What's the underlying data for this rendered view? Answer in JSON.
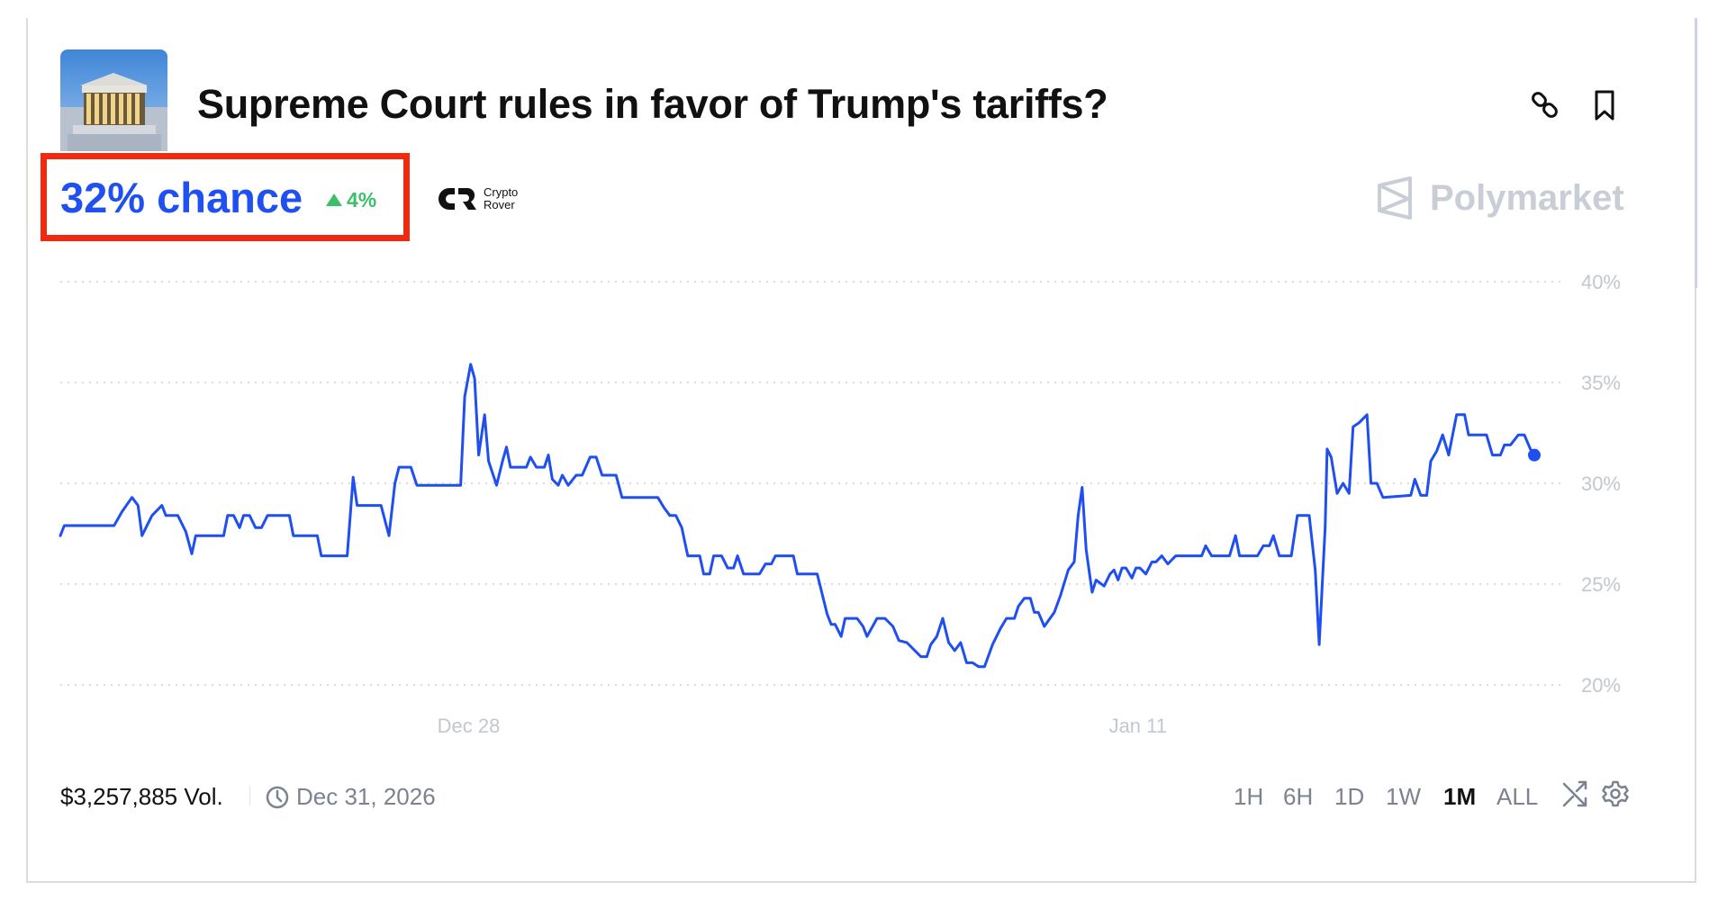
{
  "market": {
    "title": "Supreme Court rules in favor of Trump's tariffs?",
    "chance": "32% chance",
    "change": "4%",
    "change_direction": "up",
    "volume": "$3,257,885 Vol.",
    "end_date": "Dec 31, 2026"
  },
  "branding": {
    "crypto_rover_line1": "Crypto",
    "crypto_rover_line2": "Rover",
    "watermark": "Polymarket"
  },
  "header_icons": [
    "link-icon",
    "bookmark-icon"
  ],
  "time_ranges": [
    {
      "label": "1H",
      "active": false
    },
    {
      "label": "6H",
      "active": false
    },
    {
      "label": "1D",
      "active": false
    },
    {
      "label": "1W",
      "active": false
    },
    {
      "label": "1M",
      "active": true
    },
    {
      "label": "ALL",
      "active": false
    }
  ],
  "footer_icons": [
    "shuffle-icon",
    "gear-icon"
  ],
  "colors": {
    "line": "#1f4ff0",
    "chance": "#2050f0",
    "up": "#3dbf6a",
    "highlight_box": "#f02a10"
  },
  "chart_data": {
    "type": "line",
    "title": "",
    "xlabel": "",
    "ylabel": "",
    "ylim": [
      20,
      40
    ],
    "y_ticks": [
      "20%",
      "25%",
      "30%",
      "35%",
      "40%"
    ],
    "y_tick_values": [
      20,
      25,
      30,
      35,
      40
    ],
    "x_ticks": [
      "Dec 28",
      "Jan 11"
    ],
    "x_tick_values": [
      "2025-12-28T00:00",
      "2026-01-11T00:00"
    ],
    "grid": "horizontal dotted",
    "y_axis_side": "right",
    "series": [
      {
        "points": [
          [
            "2025-12-19T11:00",
            27.4
          ],
          [
            "2025-12-19T13:00",
            27.9
          ],
          [
            "2025-12-20T14:00",
            27.9
          ],
          [
            "2025-12-20T18:00",
            28.6
          ],
          [
            "2025-12-20T23:00",
            29.3
          ],
          [
            "2025-12-21T02:00",
            28.9
          ],
          [
            "2025-12-21T04:00",
            27.4
          ],
          [
            "2025-12-21T09:00",
            28.4
          ],
          [
            "2025-12-21T14:00",
            28.9
          ],
          [
            "2025-12-21T16:00",
            28.4
          ],
          [
            "2025-12-21T22:00",
            28.4
          ],
          [
            "2025-12-22T02:00",
            27.6
          ],
          [
            "2025-12-22T05:00",
            26.5
          ],
          [
            "2025-12-22T07:00",
            27.4
          ],
          [
            "2025-12-22T21:00",
            27.4
          ],
          [
            "2025-12-22T23:00",
            28.4
          ],
          [
            "2025-12-23T02:00",
            28.4
          ],
          [
            "2025-12-23T05:00",
            27.8
          ],
          [
            "2025-12-23T07:00",
            28.4
          ],
          [
            "2025-12-23T10:00",
            28.4
          ],
          [
            "2025-12-23T13:00",
            27.8
          ],
          [
            "2025-12-23T16:00",
            27.8
          ],
          [
            "2025-12-23T19:00",
            28.4
          ],
          [
            "2025-12-24T06:00",
            28.4
          ],
          [
            "2025-12-24T08:00",
            27.4
          ],
          [
            "2025-12-24T20:00",
            27.4
          ],
          [
            "2025-12-24T22:00",
            26.4
          ],
          [
            "2025-12-25T11:00",
            26.4
          ],
          [
            "2025-12-25T14:00",
            30.3
          ],
          [
            "2025-12-25T16:00",
            28.9
          ],
          [
            "2025-12-26T04:00",
            28.9
          ],
          [
            "2025-12-26T08:00",
            27.4
          ],
          [
            "2025-12-26T11:00",
            30.0
          ],
          [
            "2025-12-26T13:00",
            30.8
          ],
          [
            "2025-12-26T19:00",
            30.8
          ],
          [
            "2025-12-26T22:00",
            29.9
          ],
          [
            "2025-12-27T20:00",
            29.9
          ],
          [
            "2025-12-27T22:00",
            34.3
          ],
          [
            "2025-12-28T01:00",
            35.9
          ],
          [
            "2025-12-28T03:00",
            35.2
          ],
          [
            "2025-12-28T05:00",
            31.4
          ],
          [
            "2025-12-28T08:00",
            33.4
          ],
          [
            "2025-12-28T10:00",
            31.1
          ],
          [
            "2025-12-28T14:00",
            29.9
          ],
          [
            "2025-12-28T17:00",
            31.1
          ],
          [
            "2025-12-28T19:00",
            31.8
          ],
          [
            "2025-12-28T21:00",
            30.8
          ],
          [
            "2025-12-29T05:00",
            30.8
          ],
          [
            "2025-12-29T07:00",
            31.3
          ],
          [
            "2025-12-29T10:00",
            30.8
          ],
          [
            "2025-12-29T14:00",
            30.8
          ],
          [
            "2025-12-29T16:00",
            31.4
          ],
          [
            "2025-12-29T18:00",
            30.2
          ],
          [
            "2025-12-29T21:00",
            29.9
          ],
          [
            "2025-12-29T23:00",
            30.4
          ],
          [
            "2025-12-30T02:00",
            29.9
          ],
          [
            "2025-12-30T06:00",
            30.4
          ],
          [
            "2025-12-30T09:00",
            30.4
          ],
          [
            "2025-12-30T13:00",
            31.3
          ],
          [
            "2025-12-30T16:00",
            31.3
          ],
          [
            "2025-12-30T19:00",
            30.4
          ],
          [
            "2025-12-31T02:00",
            30.4
          ],
          [
            "2025-12-31T05:00",
            29.3
          ],
          [
            "2025-12-31T23:00",
            29.3
          ],
          [
            "2026-01-01T02:00",
            28.8
          ],
          [
            "2026-01-01T05:00",
            28.4
          ],
          [
            "2026-01-01T08:00",
            28.4
          ],
          [
            "2026-01-01T11:00",
            27.8
          ],
          [
            "2026-01-01T14:00",
            26.4
          ],
          [
            "2026-01-01T20:00",
            26.4
          ],
          [
            "2026-01-01T22:00",
            25.5
          ],
          [
            "2026-01-02T01:00",
            25.5
          ],
          [
            "2026-01-02T03:00",
            26.4
          ],
          [
            "2026-01-02T07:00",
            26.4
          ],
          [
            "2026-01-02T10:00",
            25.8
          ],
          [
            "2026-01-02T13:00",
            25.8
          ],
          [
            "2026-01-02T15:00",
            26.4
          ],
          [
            "2026-01-02T18:00",
            25.5
          ],
          [
            "2026-01-03T02:00",
            25.5
          ],
          [
            "2026-01-03T05:00",
            26.0
          ],
          [
            "2026-01-03T08:00",
            26.0
          ],
          [
            "2026-01-03T10:00",
            26.4
          ],
          [
            "2026-01-03T19:00",
            26.4
          ],
          [
            "2026-01-03T21:00",
            25.5
          ],
          [
            "2026-01-04T07:00",
            25.5
          ],
          [
            "2026-01-04T12:00",
            23.5
          ],
          [
            "2026-01-04T14:00",
            23.0
          ],
          [
            "2026-01-04T16:00",
            23.0
          ],
          [
            "2026-01-04T19:00",
            22.4
          ],
          [
            "2026-01-04T21:00",
            23.3
          ],
          [
            "2026-01-05T03:00",
            23.3
          ],
          [
            "2026-01-05T06:00",
            22.9
          ],
          [
            "2026-01-05T08:00",
            22.4
          ],
          [
            "2026-01-05T13:00",
            23.3
          ],
          [
            "2026-01-05T17:00",
            23.3
          ],
          [
            "2026-01-05T21:00",
            22.9
          ],
          [
            "2026-01-06T00:00",
            22.2
          ],
          [
            "2026-01-06T04:00",
            22.1
          ],
          [
            "2026-01-06T11:00",
            21.4
          ],
          [
            "2026-01-06T14:00",
            21.4
          ],
          [
            "2026-01-06T16:00",
            22.0
          ],
          [
            "2026-01-06T19:00",
            22.4
          ],
          [
            "2026-01-06T22:00",
            23.3
          ],
          [
            "2026-01-07T01:00",
            22.1
          ],
          [
            "2026-01-07T04:00",
            21.7
          ],
          [
            "2026-01-07T07:00",
            22.1
          ],
          [
            "2026-01-07T10:00",
            21.1
          ],
          [
            "2026-01-07T13:00",
            21.1
          ],
          [
            "2026-01-07T16:00",
            20.9
          ],
          [
            "2026-01-07T19:00",
            20.9
          ],
          [
            "2026-01-07T23:00",
            22.0
          ],
          [
            "2026-01-08T03:00",
            22.8
          ],
          [
            "2026-01-08T06:00",
            23.3
          ],
          [
            "2026-01-08T10:00",
            23.3
          ],
          [
            "2026-01-08T12:00",
            23.9
          ],
          [
            "2026-01-08T15:00",
            24.3
          ],
          [
            "2026-01-08T18:00",
            24.3
          ],
          [
            "2026-01-08T20:00",
            23.6
          ],
          [
            "2026-01-08T22:00",
            23.6
          ],
          [
            "2026-01-09T01:00",
            22.9
          ],
          [
            "2026-01-09T06:00",
            23.6
          ],
          [
            "2026-01-09T09:00",
            24.4
          ],
          [
            "2026-01-09T13:00",
            25.7
          ],
          [
            "2026-01-09T16:00",
            26.1
          ],
          [
            "2026-01-09T18:00",
            28.4
          ],
          [
            "2026-01-09T20:00",
            29.8
          ],
          [
            "2026-01-09T22:00",
            26.7
          ],
          [
            "2026-01-10T01:00",
            24.6
          ],
          [
            "2026-01-10T03:00",
            25.2
          ],
          [
            "2026-01-10T07:00",
            24.9
          ],
          [
            "2026-01-10T10:00",
            25.5
          ],
          [
            "2026-01-10T12:00",
            25.7
          ],
          [
            "2026-01-10T14:00",
            25.2
          ],
          [
            "2026-01-10T16:00",
            25.8
          ],
          [
            "2026-01-10T18:00",
            25.8
          ],
          [
            "2026-01-10T21:00",
            25.3
          ],
          [
            "2026-01-10T23:00",
            25.8
          ],
          [
            "2026-01-11T01:00",
            25.8
          ],
          [
            "2026-01-11T04:00",
            25.5
          ],
          [
            "2026-01-11T07:00",
            26.1
          ],
          [
            "2026-01-11T09:00",
            26.1
          ],
          [
            "2026-01-11T12:00",
            26.4
          ],
          [
            "2026-01-11T15:00",
            26.0
          ],
          [
            "2026-01-11T19:00",
            26.4
          ],
          [
            "2026-01-12T08:00",
            26.4
          ],
          [
            "2026-01-12T10:00",
            26.9
          ],
          [
            "2026-01-12T13:00",
            26.4
          ],
          [
            "2026-01-12T22:00",
            26.4
          ],
          [
            "2026-01-13T01:00",
            27.4
          ],
          [
            "2026-01-13T03:00",
            26.4
          ],
          [
            "2026-01-13T12:00",
            26.4
          ],
          [
            "2026-01-13T15:00",
            26.9
          ],
          [
            "2026-01-13T18:00",
            26.9
          ],
          [
            "2026-01-13T20:00",
            27.4
          ],
          [
            "2026-01-13T23:00",
            26.4
          ],
          [
            "2026-01-14T05:00",
            26.4
          ],
          [
            "2026-01-14T08:00",
            28.4
          ],
          [
            "2026-01-14T14:00",
            28.4
          ],
          [
            "2026-01-14T17:00",
            25.7
          ],
          [
            "2026-01-14T19:00",
            22.0
          ],
          [
            "2026-01-14T22:00",
            27.8
          ],
          [
            "2026-01-14T23:00",
            31.7
          ],
          [
            "2026-01-15T01:00",
            31.3
          ],
          [
            "2026-01-15T04:00",
            29.5
          ],
          [
            "2026-01-15T07:00",
            30.0
          ],
          [
            "2026-01-15T10:00",
            29.5
          ],
          [
            "2026-01-15T12:00",
            32.8
          ],
          [
            "2026-01-15T15:00",
            33.0
          ],
          [
            "2026-01-15T19:00",
            33.4
          ],
          [
            "2026-01-15T21:00",
            30.0
          ],
          [
            "2026-01-16T00:00",
            30.0
          ],
          [
            "2026-01-16T03:00",
            29.3
          ],
          [
            "2026-01-16T17:00",
            29.4
          ],
          [
            "2026-01-16T19:00",
            30.2
          ],
          [
            "2026-01-16T22:00",
            29.4
          ],
          [
            "2026-01-17T01:00",
            29.4
          ],
          [
            "2026-01-17T03:00",
            31.1
          ],
          [
            "2026-01-17T06:00",
            31.6
          ],
          [
            "2026-01-17T09:00",
            32.4
          ],
          [
            "2026-01-17T12:00",
            31.4
          ],
          [
            "2026-01-17T16:00",
            33.4
          ],
          [
            "2026-01-17T20:00",
            33.4
          ],
          [
            "2026-01-17T22:00",
            32.4
          ],
          [
            "2026-01-18T07:00",
            32.4
          ],
          [
            "2026-01-18T10:00",
            31.4
          ],
          [
            "2026-01-18T14:00",
            31.4
          ],
          [
            "2026-01-18T16:00",
            31.9
          ],
          [
            "2026-01-18T19:00",
            31.9
          ],
          [
            "2026-01-18T23:00",
            32.4
          ],
          [
            "2026-01-19T02:00",
            32.4
          ],
          [
            "2026-01-19T05:00",
            31.7
          ],
          [
            "2026-01-19T07:00",
            31.4
          ]
        ]
      }
    ]
  }
}
